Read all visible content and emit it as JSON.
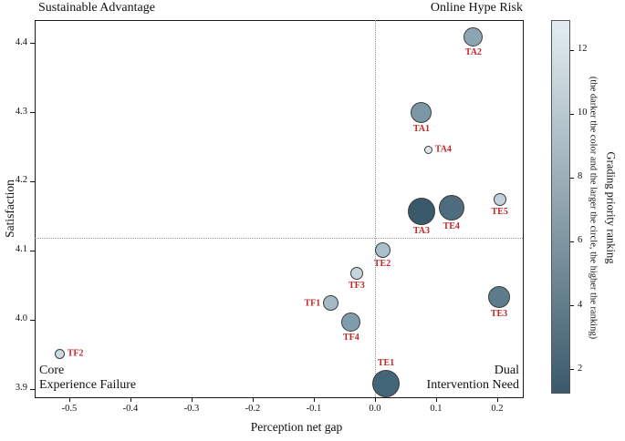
{
  "chart_data": {
    "type": "scatter",
    "xlabel": "Perception net gap",
    "ylabel": "Satisfaction",
    "xlim": [
      -0.5567,
      0.2418
    ],
    "ylim": [
      3.888,
      4.433
    ],
    "x_ticks": [
      "-0.5",
      "-0.4",
      "-0.3",
      "-0.2",
      "-0.1",
      "0.0",
      "0.1",
      "0.2"
    ],
    "y_ticks": [
      "3.9",
      "4.0",
      "4.1",
      "4.2",
      "4.3",
      "4.4"
    ],
    "grid": "off",
    "reference_lines": {
      "vertical_x": 0.0,
      "horizontal_y": 4.119,
      "style": "dotted",
      "color": "#9a9a9a"
    },
    "quadrant_labels": {
      "top_left": "Sustainable Advantage",
      "top_right": "Online Hype Risk",
      "bottom_left": "Core\nExperience Failure",
      "bottom_right": "Dual\nIntervention Need"
    },
    "point_label_color": "#c0282a",
    "points": [
      {
        "label": "TA1",
        "x": 0.076,
        "y": 4.299,
        "rank": 5,
        "radius": 11.5,
        "color": "#7b97a6",
        "label_pos": "below"
      },
      {
        "label": "TA2",
        "x": 0.161,
        "y": 4.408,
        "rank": 7,
        "radius": 10.5,
        "color": "#8ba5b2",
        "label_pos": "below"
      },
      {
        "label": "TA3",
        "x": 0.076,
        "y": 4.156,
        "rank": 1,
        "radius": 15,
        "color": "#3a5a6b",
        "label_pos": "below"
      },
      {
        "label": "TA4",
        "x": 0.087,
        "y": 4.246,
        "rank": 13,
        "radius": 4.5,
        "color": "#dde7ec",
        "label_pos": "right"
      },
      {
        "label": "TE1",
        "x": 0.018,
        "y": 3.908,
        "rank": 2,
        "radius": 15,
        "color": "#436578",
        "label_pos": "above"
      },
      {
        "label": "TE2",
        "x": 0.012,
        "y": 4.1,
        "rank": 9,
        "radius": 8.5,
        "color": "#a9c0cb",
        "label_pos": "below"
      },
      {
        "label": "TE3",
        "x": 0.203,
        "y": 4.033,
        "rank": 4,
        "radius": 12,
        "color": "#5d7b8b",
        "label_pos": "below"
      },
      {
        "label": "TE4",
        "x": 0.125,
        "y": 4.162,
        "rank": 3,
        "radius": 14,
        "color": "#4d6c7d",
        "label_pos": "below"
      },
      {
        "label": "TE5",
        "x": 0.204,
        "y": 4.174,
        "rank": 11,
        "radius": 7,
        "color": "#c3d2da",
        "label_pos": "below"
      },
      {
        "label": "TF1",
        "x": -0.072,
        "y": 4.024,
        "rank": 8,
        "radius": 8.5,
        "color": "#a3bac6",
        "label_pos": "left"
      },
      {
        "label": "TF2",
        "x": -0.516,
        "y": 3.951,
        "rank": 12,
        "radius": 5.5,
        "color": "#ccd9e0",
        "label_pos": "right"
      },
      {
        "label": "TF3",
        "x": -0.03,
        "y": 4.067,
        "rank": 10,
        "radius": 7,
        "color": "#c6d5dd",
        "label_pos": "below"
      },
      {
        "label": "TF4",
        "x": -0.039,
        "y": 3.996,
        "rank": 6,
        "radius": 10.5,
        "color": "#7f9dac",
        "label_pos": "below"
      }
    ],
    "colorbar": {
      "label_main": "Grading priority ranking",
      "label_sub": "(the darker the color and the larger the circle, the higher the ranking)",
      "ticks": [
        "2",
        "4",
        "6",
        "8",
        "10",
        "12"
      ],
      "domain": [
        1.23,
        12.94
      ],
      "color_dark": "#3a5a6b",
      "color_light": "#e3edf1",
      "position": "right"
    }
  }
}
